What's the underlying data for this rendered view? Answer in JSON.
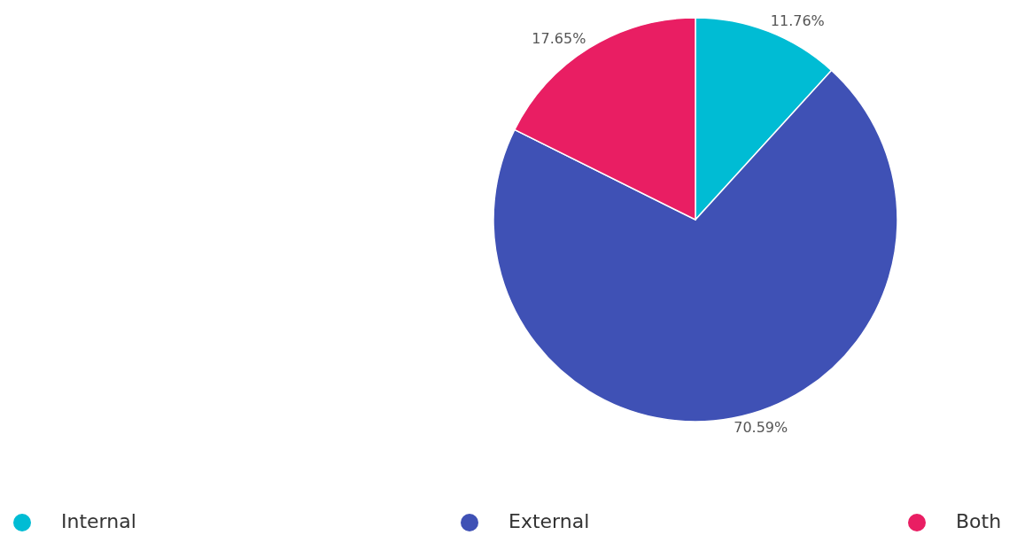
{
  "chart_data": {
    "type": "pie",
    "categories": [
      "Internal",
      "External",
      "Both"
    ],
    "values": [
      11.76,
      70.59,
      17.65
    ],
    "colors": [
      "#00bcd4",
      "#3f51b5",
      "#e91e63"
    ],
    "value_labels": [
      "11.76%",
      "70.59%",
      "17.65%"
    ],
    "legend": "bottom"
  }
}
